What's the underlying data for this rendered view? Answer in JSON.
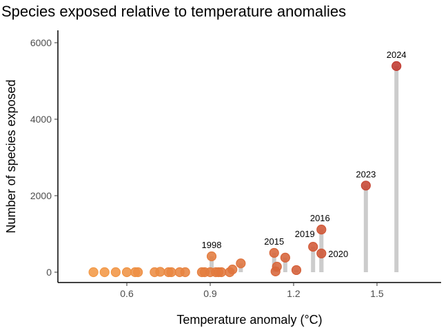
{
  "chart_data": {
    "type": "scatter",
    "title": "Species exposed relative to temperature anomalies",
    "xlabel": "Temperature anomaly (°C)",
    "ylabel": "Number of species exposed",
    "xlim": [
      0.4,
      1.72
    ],
    "ylim": [
      -270,
      6300
    ],
    "xticks": [
      0.6,
      0.9,
      1.2,
      1.5
    ],
    "xtick_labels": [
      "0.6",
      "0.9",
      "1.2",
      "1.5"
    ],
    "yticks": [
      0,
      2000,
      4000,
      6000
    ],
    "ytick_labels": [
      "0",
      "2000",
      "4000",
      "6000"
    ],
    "grid": false,
    "color_low": "#f39a46",
    "color_high": "#c0392f",
    "stem_color": "#cccccc",
    "points": [
      {
        "x": 0.48,
        "y": 0
      },
      {
        "x": 0.52,
        "y": 0
      },
      {
        "x": 0.56,
        "y": 0
      },
      {
        "x": 0.6,
        "y": 0
      },
      {
        "x": 0.63,
        "y": 0
      },
      {
        "x": 0.64,
        "y": 0
      },
      {
        "x": 0.7,
        "y": 0
      },
      {
        "x": 0.72,
        "y": 10
      },
      {
        "x": 0.75,
        "y": 0
      },
      {
        "x": 0.76,
        "y": 0
      },
      {
        "x": 0.79,
        "y": 0
      },
      {
        "x": 0.81,
        "y": 0
      },
      {
        "x": 0.87,
        "y": 0
      },
      {
        "x": 0.88,
        "y": 0
      },
      {
        "x": 0.9,
        "y": 0
      },
      {
        "x": 0.905,
        "y": 415,
        "label": "1998"
      },
      {
        "x": 0.92,
        "y": 0
      },
      {
        "x": 0.93,
        "y": 0
      },
      {
        "x": 0.94,
        "y": 0
      },
      {
        "x": 0.97,
        "y": 0
      },
      {
        "x": 0.98,
        "y": 70
      },
      {
        "x": 1.01,
        "y": 230
      },
      {
        "x": 1.13,
        "y": 505,
        "label": "2015"
      },
      {
        "x": 1.135,
        "y": 20
      },
      {
        "x": 1.14,
        "y": 145
      },
      {
        "x": 1.17,
        "y": 380
      },
      {
        "x": 1.21,
        "y": 55
      },
      {
        "x": 1.27,
        "y": 665,
        "label": "2019"
      },
      {
        "x": 1.3,
        "y": 1115,
        "label": "2016"
      },
      {
        "x": 1.3,
        "y": 490,
        "label": "2020"
      },
      {
        "x": 1.46,
        "y": 2265,
        "label": "2023"
      },
      {
        "x": 1.57,
        "y": 5390,
        "label": "2024"
      }
    ]
  }
}
